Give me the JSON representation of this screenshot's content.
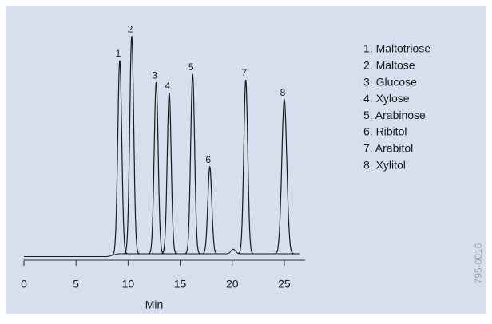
{
  "chart_data": {
    "type": "chromatogram",
    "x_label": "Min",
    "xlim": [
      0,
      27
    ],
    "xticks": [
      0,
      5,
      10,
      15,
      20,
      25
    ],
    "ylim": [
      0,
      100
    ],
    "color": "#1a1a1a",
    "x": [
      9.2,
      10.35,
      12.7,
      13.95,
      16.2,
      17.85,
      21.3,
      25.0
    ],
    "values": [
      86,
      96.5,
      76.5,
      72,
      80,
      40,
      77.6,
      69
    ],
    "peak_labels": [
      "1",
      "2",
      "3",
      "4",
      "5",
      "6",
      "7",
      "8"
    ],
    "legend": [
      "1. Maltotriose",
      "2. Maltose",
      "3. Glucose",
      "4. Xylose",
      "5. Arabinose",
      "6. Ribitol",
      "7. Arabitol",
      "8. Xylitol"
    ],
    "figure_code": "795-0016"
  }
}
